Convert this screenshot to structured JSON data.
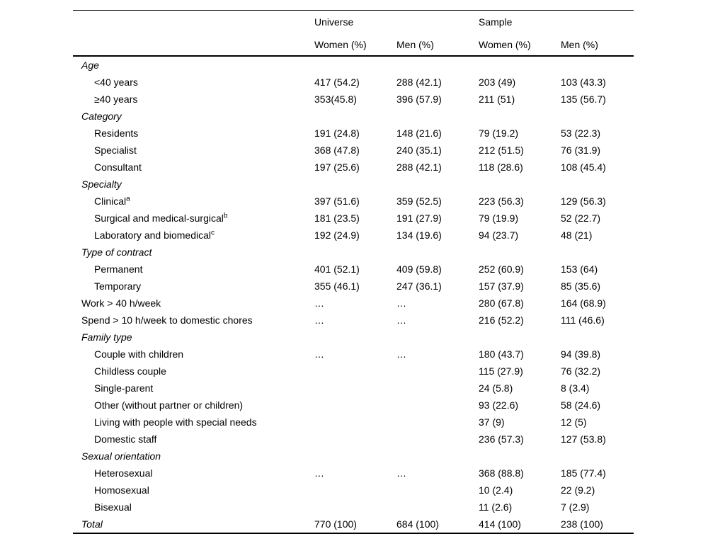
{
  "table": {
    "group_headers": [
      {
        "label": "Universe",
        "span": 2
      },
      {
        "label": "Sample",
        "span": 2
      }
    ],
    "col_headers": [
      "Women (%)",
      "Men (%)",
      "Women (%)",
      "Men (%)"
    ],
    "rows": [
      {
        "label": "Age",
        "type": "section",
        "cells": [
          "",
          "",
          "",
          ""
        ]
      },
      {
        "label": "<40 years",
        "type": "indent",
        "cells": [
          "417 (54.2)",
          "288 (42.1)",
          "203 (49)",
          "103 (43.3)"
        ]
      },
      {
        "label": "≥40 years",
        "type": "indent",
        "cells": [
          "353(45.8)",
          "396 (57.9)",
          "211 (51)",
          "135 (56.7)"
        ]
      },
      {
        "label": "Category",
        "type": "section",
        "cells": [
          "",
          "",
          "",
          ""
        ]
      },
      {
        "label": "Residents",
        "type": "indent",
        "cells": [
          "191 (24.8)",
          "148 (21.6)",
          "79 (19.2)",
          "53 (22.3)"
        ]
      },
      {
        "label": "Specialist",
        "type": "indent",
        "cells": [
          "368 (47.8)",
          "240 (35.1)",
          "212 (51.5)",
          "76 (31.9)"
        ]
      },
      {
        "label": "Consultant",
        "type": "indent",
        "cells": [
          "197 (25.6)",
          "288 (42.1)",
          "118 (28.6)",
          "108 (45.4)"
        ]
      },
      {
        "label": "Specialty",
        "type": "section",
        "cells": [
          "",
          "",
          "",
          ""
        ]
      },
      {
        "label": "Clinical",
        "sup": "a",
        "type": "indent",
        "cells": [
          "397 (51.6)",
          "359 (52.5)",
          "223 (56.3)",
          "129 (56.3)"
        ]
      },
      {
        "label": "Surgical and medical-surgical",
        "sup": "b",
        "type": "indent",
        "cells": [
          "181 (23.5)",
          "191 (27.9)",
          "79 (19.9)",
          "52 (22.7)"
        ]
      },
      {
        "label": "Laboratory and biomedical",
        "sup": "c",
        "type": "indent",
        "cells": [
          "192 (24.9)",
          "134 (19.6)",
          "94 (23.7)",
          "48 (21)"
        ]
      },
      {
        "label": "Type of contract",
        "type": "section",
        "cells": [
          "",
          "",
          "",
          ""
        ]
      },
      {
        "label": "Permanent",
        "type": "indent",
        "cells": [
          "401 (52.1)",
          "409 (59.8)",
          "252 (60.9)",
          "153 (64)"
        ]
      },
      {
        "label": "Temporary",
        "type": "indent",
        "cells": [
          "355 (46.1)",
          "247 (36.1)",
          "157 (37.9)",
          "85 (35.6)"
        ]
      },
      {
        "label": "Work > 40 h/week",
        "type": "flush",
        "cells": [
          "…",
          "…",
          "280 (67.8)",
          "164 (68.9)"
        ]
      },
      {
        "label": "Spend > 10 h/week to domestic chores",
        "type": "flush",
        "cells": [
          "…",
          "…",
          "216 (52.2)",
          "111 (46.6)"
        ]
      },
      {
        "label": "Family type",
        "type": "section",
        "cells": [
          "",
          "",
          "",
          ""
        ]
      },
      {
        "label": "Couple with children",
        "type": "indent",
        "cells": [
          "…",
          "…",
          "180 (43.7)",
          "94 (39.8)"
        ]
      },
      {
        "label": "Childless couple",
        "type": "indent",
        "cells": [
          "",
          "",
          "115 (27.9)",
          "76 (32.2)"
        ]
      },
      {
        "label": "Single-parent",
        "type": "indent",
        "cells": [
          "",
          "",
          "24 (5.8)",
          "8 (3.4)"
        ]
      },
      {
        "label": "Other (without partner or children)",
        "type": "indent",
        "cells": [
          "",
          "",
          "93 (22.6)",
          "58 (24.6)"
        ]
      },
      {
        "label": "Living with people with special needs",
        "type": "indent",
        "cells": [
          "",
          "",
          "37 (9)",
          "12 (5)"
        ]
      },
      {
        "label": "Domestic staff",
        "type": "indent",
        "cells": [
          "",
          "",
          "236 (57.3)",
          "127 (53.8)"
        ]
      },
      {
        "label": "Sexual orientation",
        "type": "section",
        "cells": [
          "",
          "",
          "",
          ""
        ]
      },
      {
        "label": "Heterosexual",
        "type": "indent",
        "cells": [
          "…",
          "…",
          "368 (88.8)",
          "185 (77.4)"
        ]
      },
      {
        "label": "Homosexual",
        "type": "indent",
        "cells": [
          "",
          "",
          "10 (2.4)",
          "22 (9.2)"
        ]
      },
      {
        "label": "Bisexual",
        "type": "indent",
        "cells": [
          "",
          "",
          "11 (2.6)",
          "7 (2.9)"
        ]
      },
      {
        "label": "Total",
        "type": "section",
        "cells": [
          "770 (100)",
          "684 (100)",
          "414 (100)",
          "238 (100)"
        ]
      }
    ]
  }
}
